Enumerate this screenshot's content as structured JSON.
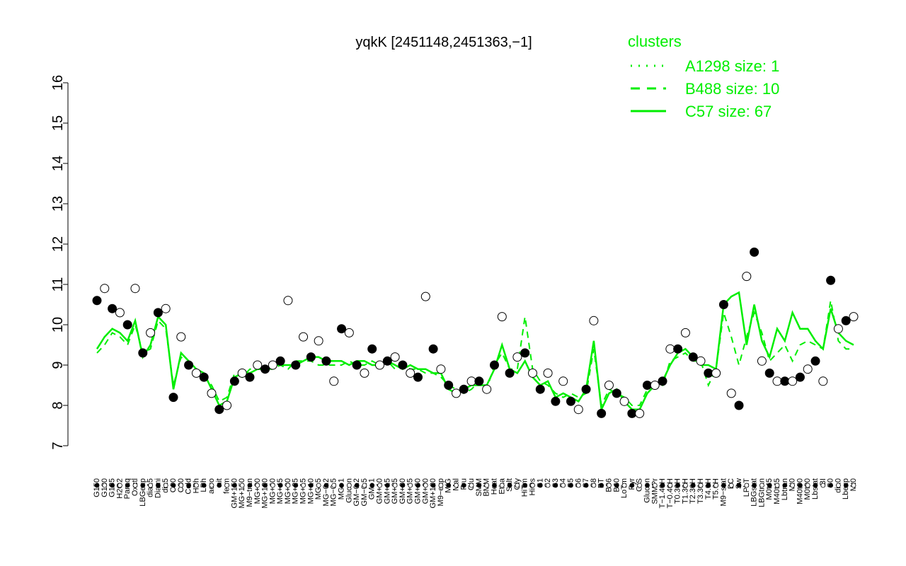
{
  "colors": {
    "cluster": "#00ee00",
    "axis": "#000000",
    "point_fill_open": "#ffffff",
    "point_fill_filled": "#000000"
  },
  "chart_data": {
    "type": "line",
    "title": "yqkK [2451148,2451363,−1]",
    "xlabel": "",
    "ylabel": "",
    "ylim": [
      7,
      16
    ],
    "yticks": [
      7,
      8,
      9,
      10,
      11,
      12,
      13,
      14,
      15,
      16
    ],
    "legend": {
      "title": "clusters",
      "position": "top-right",
      "entries": [
        {
          "label": "A1298 size: 1",
          "style": "dotted"
        },
        {
          "label": "B488 size: 10",
          "style": "dashed"
        },
        {
          "label": "C57 size: 67",
          "style": "solid"
        }
      ]
    },
    "xtick_labels": [
      "G150",
      "G180",
      "G135",
      "H2O2",
      "Paraq",
      "Oxctl",
      "LBGexp",
      "dia15",
      "Diami",
      "dia5",
      "C90",
      "C30",
      "Cold",
      "HPh",
      "LPh",
      "aero",
      "nit",
      "ferm",
      "GM+150",
      "MG+150",
      "M9−tran",
      "MG+90",
      "MG+120",
      "MG+60",
      "MG+45",
      "MG+30",
      "MG+25",
      "MG+15",
      "MG+10",
      "MG+5",
      "MG−0.2",
      "MG−0.5",
      "MG−1",
      "Glucon",
      "GM−0.2",
      "GM−0.5",
      "GM−1",
      "GM+10",
      "GM+15",
      "GM+25",
      "GM+30",
      "GM+45",
      "GM+60",
      "GM+90",
      "GM+120",
      "M9−exp",
      "M/G",
      "Mal",
      "Fru",
      "Glu",
      "SMM",
      "BMM",
      "Heat",
      "Etha",
      "Salt",
      "Gly",
      "HiTm",
      "HiOs",
      "S1",
      "S2",
      "S3",
      "S4",
      "S5",
      "S6",
      "S7",
      "S8",
      "BT",
      "B36",
      "B60",
      "LoTm",
      "Pyr",
      "G/S",
      "Glucon",
      "SMMPr",
      "T−1.40H",
      "T−0.40H",
      "T0.30H",
      "T1.30H",
      "T2.30H",
      "T3.30H",
      "T4.0H",
      "T5.0H",
      "M9−stat",
      "BC",
      "Sw",
      "LPhT",
      "LBGstat",
      "LBGtran",
      "M0t45",
      "M40t45",
      "Lbtran",
      "Mt0",
      "M40t90",
      "M0t90",
      "Lbstat",
      "BI",
      "S0",
      "dia0",
      "Lbexp",
      "Mt0"
    ],
    "series": [
      {
        "name": "C57 size: 67",
        "style": "solid",
        "values": [
          9.4,
          9.7,
          9.9,
          9.8,
          9.6,
          10.1,
          9.2,
          9.5,
          10.2,
          10.0,
          8.4,
          9.3,
          9.1,
          8.9,
          8.8,
          8.4,
          8.0,
          8.1,
          8.7,
          8.8,
          8.8,
          8.9,
          8.9,
          9.0,
          9.0,
          9.0,
          9.0,
          9.1,
          9.2,
          9.2,
          9.1,
          9.1,
          9.1,
          9.0,
          9.1,
          9.1,
          9.0,
          9.0,
          9.1,
          9.0,
          8.9,
          9.0,
          8.9,
          8.9,
          8.8,
          8.8,
          8.4,
          8.3,
          8.4,
          8.5,
          8.5,
          8.5,
          8.9,
          9.5,
          8.9,
          8.8,
          9.1,
          8.7,
          8.5,
          8.6,
          8.2,
          8.3,
          8.2,
          8.1,
          8.4,
          9.6,
          7.9,
          8.3,
          8.4,
          8.1,
          7.9,
          7.9,
          8.3,
          8.5,
          8.6,
          9.0,
          9.3,
          9.4,
          9.2,
          9.0,
          9.0,
          8.9,
          10.5,
          10.7,
          10.8,
          9.5,
          10.5,
          9.6,
          9.2,
          9.9,
          9.6,
          10.3,
          9.9,
          9.9,
          9.6,
          9.4,
          10.4,
          9.8,
          9.6,
          9.5
        ]
      },
      {
        "name": "B488 size: 10",
        "style": "dashed",
        "values": [
          9.3,
          9.5,
          9.8,
          9.7,
          9.5,
          10.0,
          9.3,
          9.4,
          10.1,
          9.9,
          8.5,
          9.2,
          9.0,
          8.9,
          8.7,
          8.5,
          8.1,
          8.2,
          8.8,
          8.7,
          8.9,
          8.9,
          8.9,
          8.9,
          9.0,
          8.9,
          9.1,
          9.1,
          9.1,
          9.0,
          9.0,
          9.0,
          9.0,
          9.1,
          9.0,
          9.0,
          9.1,
          9.0,
          9.1,
          8.9,
          9.0,
          8.9,
          8.9,
          8.8,
          8.8,
          8.7,
          8.5,
          8.4,
          8.3,
          8.4,
          8.6,
          8.4,
          9.0,
          9.3,
          8.9,
          8.9,
          10.2,
          8.9,
          8.6,
          8.5,
          8.3,
          8.2,
          8.3,
          8.2,
          8.3,
          9.4,
          8.0,
          8.4,
          8.3,
          8.2,
          8.0,
          8.0,
          8.4,
          8.6,
          8.5,
          9.1,
          9.2,
          9.3,
          9.1,
          9.1,
          8.5,
          8.9,
          10.3,
          9.7,
          9.0,
          9.7,
          10.3,
          9.8,
          9.1,
          9.3,
          9.5,
          9.1,
          9.5,
          9.6,
          9.5,
          9.4,
          10.6,
          9.6,
          9.4,
          9.4
        ]
      }
    ],
    "points": [
      10.6,
      10.9,
      10.4,
      10.3,
      10.0,
      10.9,
      9.3,
      9.8,
      10.3,
      10.4,
      8.2,
      9.7,
      9.0,
      8.8,
      8.7,
      8.3,
      7.9,
      8.0,
      8.6,
      8.8,
      8.7,
      9.0,
      8.9,
      9.0,
      9.1,
      10.6,
      9.0,
      9.7,
      9.2,
      9.6,
      9.1,
      8.6,
      9.9,
      9.8,
      9.0,
      8.8,
      9.4,
      9.0,
      9.1,
      9.2,
      9.0,
      8.8,
      8.7,
      10.7,
      9.4,
      8.9,
      8.5,
      8.3,
      8.4,
      8.6,
      8.6,
      8.4,
      9.0,
      10.2,
      8.8,
      9.2,
      9.3,
      8.8,
      8.4,
      8.8,
      8.1,
      8.6,
      8.1,
      7.9,
      8.4,
      10.1,
      7.8,
      8.5,
      8.3,
      8.1,
      7.8,
      7.8,
      8.5,
      8.5,
      8.6,
      9.4,
      9.4,
      9.8,
      9.2,
      9.1,
      8.8,
      8.8,
      10.5,
      8.3,
      8.0,
      11.2,
      11.8,
      9.1,
      8.8,
      8.6,
      8.6,
      8.6,
      8.7,
      8.9,
      9.1,
      8.6,
      11.1,
      9.9,
      10.1,
      10.2
    ]
  }
}
